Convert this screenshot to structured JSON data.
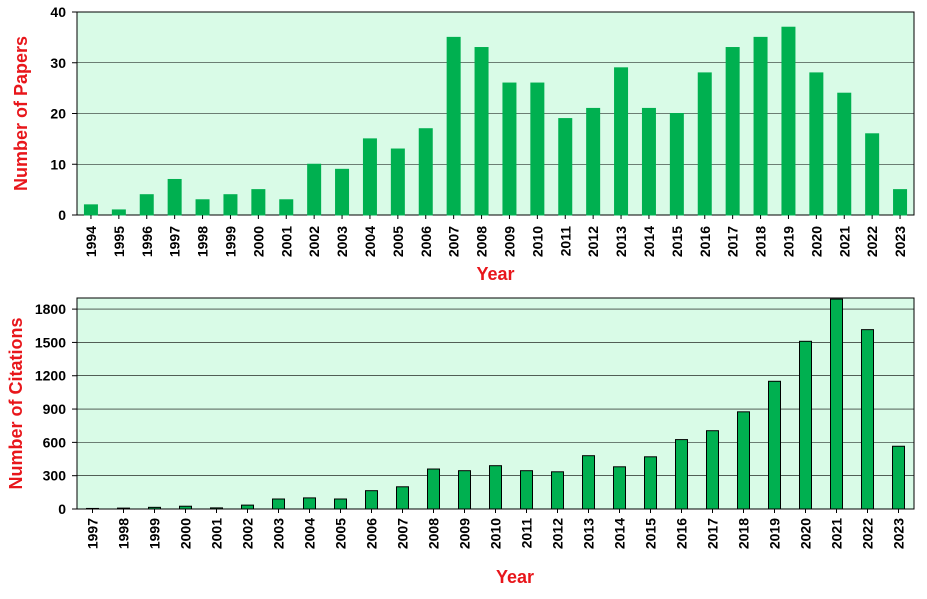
{
  "chart_data": [
    {
      "type": "bar",
      "title": "",
      "xlabel": "Year",
      "ylabel": "Number of Papers",
      "ylim": [
        0,
        40
      ],
      "yticks": [
        0,
        10,
        20,
        30,
        40
      ],
      "grid": true,
      "categories": [
        "1994",
        "1995",
        "1996",
        "1997",
        "1998",
        "1999",
        "2000",
        "2001",
        "2002",
        "2003",
        "2004",
        "2005",
        "2006",
        "2007",
        "2008",
        "2009",
        "2010",
        "2011",
        "2012",
        "2013",
        "2014",
        "2015",
        "2016",
        "2017",
        "2018",
        "2019",
        "2020",
        "2021",
        "2022",
        "2023"
      ],
      "values": [
        2,
        1,
        4,
        7,
        3,
        4,
        5,
        3,
        10,
        9,
        15,
        13,
        17,
        35,
        33,
        26,
        26,
        19,
        21,
        29,
        21,
        20,
        28,
        33,
        35,
        37,
        28,
        24,
        16,
        5
      ],
      "colors": {
        "bar": "#00b050",
        "bar_border": "#00b050",
        "plot_bg": "#d9fbe7",
        "label": "#e8161b"
      }
    },
    {
      "type": "bar",
      "title": "",
      "xlabel": "Year",
      "ylabel": "Number of Citations",
      "ylim": [
        0,
        1900
      ],
      "yticks": [
        0,
        300,
        600,
        900,
        1200,
        1500,
        1800
      ],
      "grid": true,
      "categories": [
        "1997",
        "1998",
        "1999",
        "2000",
        "2001",
        "2002",
        "2003",
        "2004",
        "2005",
        "2006",
        "2007",
        "2008",
        "2009",
        "2010",
        "2011",
        "2012",
        "2013",
        "2014",
        "2015",
        "2016",
        "2017",
        "2018",
        "2019",
        "2020",
        "2021",
        "2022",
        "2023"
      ],
      "values": [
        5,
        8,
        15,
        25,
        10,
        35,
        90,
        100,
        90,
        165,
        200,
        360,
        345,
        390,
        345,
        335,
        480,
        380,
        470,
        625,
        705,
        875,
        1150,
        1510,
        1890,
        1615,
        565
      ],
      "colors": {
        "bar": "#00b050",
        "bar_border": "#000000",
        "plot_bg": "#d9fbe7",
        "label": "#e8161b"
      }
    }
  ]
}
